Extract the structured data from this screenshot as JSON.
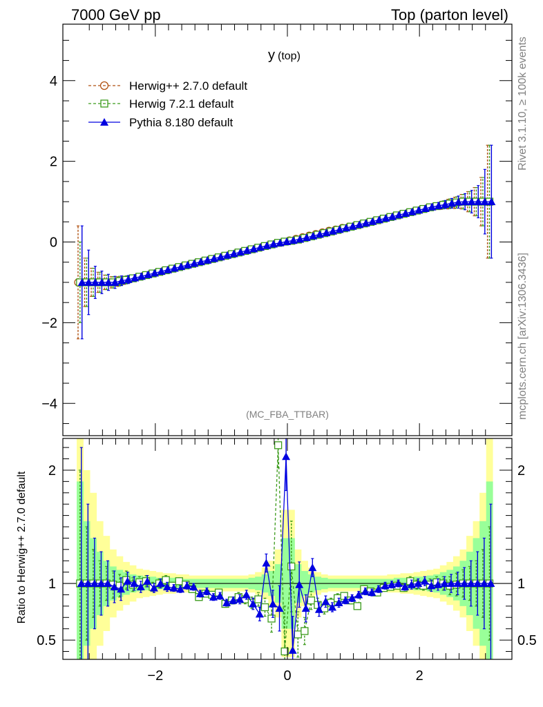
{
  "header": {
    "left": "7000 GeV pp",
    "right": "Top (parton level)"
  },
  "side_labels": {
    "rivet": "Rivet 3.1.10, ≥ 100k events",
    "site": "mcplots.cern.ch [arXiv:1306.3436]"
  },
  "analysis_tag": "(MC_FBA_TTBAR)",
  "colors": {
    "herwigpp": "#b05010",
    "herwig7": "#3a9a1a",
    "pythia": "#0000e0",
    "band_yellow": "#ffff99",
    "band_green": "#99ff99"
  },
  "chart_data": [
    {
      "type": "line",
      "title": "y (top)",
      "title_main": "y",
      "title_sub": "(top)",
      "xlabel": "",
      "ylabel": "",
      "xlim": [
        -3.4,
        3.4
      ],
      "ylim": [
        -4.8,
        5.4
      ],
      "yticks": [
        -4,
        -2,
        0,
        2,
        4
      ],
      "ytick_labels": [
        "−4",
        "−2",
        "0",
        "2",
        "4"
      ],
      "legend_position": "top-left",
      "legend": [
        "Herwig++ 2.7.0 default",
        "Herwig 7.2.1 default",
        "Pythia 8.180 default"
      ],
      "x": [
        -3.14,
        -3.04,
        -2.94,
        -2.84,
        -2.74,
        -2.64,
        -2.54,
        -2.44,
        -2.34,
        -2.24,
        -2.14,
        -2.04,
        -1.94,
        -1.84,
        -1.74,
        -1.64,
        -1.54,
        -1.44,
        -1.34,
        -1.24,
        -1.14,
        -1.04,
        -0.94,
        -0.84,
        -0.74,
        -0.64,
        -0.54,
        -0.44,
        -0.34,
        -0.24,
        -0.14,
        -0.04,
        0.06,
        0.16,
        0.26,
        0.36,
        0.46,
        0.56,
        0.66,
        0.76,
        0.86,
        0.96,
        1.06,
        1.16,
        1.26,
        1.36,
        1.46,
        1.56,
        1.66,
        1.76,
        1.86,
        1.96,
        2.06,
        2.16,
        2.26,
        2.36,
        2.46,
        2.56,
        2.66,
        2.76,
        2.86,
        2.96,
        3.06
      ],
      "series": [
        {
          "name": "Herwig++ 2.7.0 default",
          "marker": "circle",
          "style": "dashed",
          "values": [
            -1.0,
            -1.0,
            -1.0,
            -1.0,
            -1.0,
            -1.0,
            -0.98,
            -0.95,
            -0.91,
            -0.87,
            -0.83,
            -0.79,
            -0.75,
            -0.71,
            -0.67,
            -0.63,
            -0.59,
            -0.55,
            -0.51,
            -0.47,
            -0.43,
            -0.39,
            -0.35,
            -0.31,
            -0.27,
            -0.23,
            -0.19,
            -0.15,
            -0.11,
            -0.07,
            -0.03,
            0.0,
            0.04,
            0.08,
            0.12,
            0.16,
            0.2,
            0.24,
            0.28,
            0.31,
            0.35,
            0.38,
            0.41,
            0.45,
            0.49,
            0.53,
            0.57,
            0.61,
            0.65,
            0.69,
            0.73,
            0.77,
            0.81,
            0.85,
            0.88,
            0.91,
            0.94,
            0.97,
            1.0,
            1.0,
            1.0,
            1.0,
            1.0
          ],
          "errors": [
            1.4,
            0.6,
            0.35,
            0.25,
            0.18,
            0.14,
            0.12,
            0.1,
            0.08,
            0.07,
            0.06,
            0.05,
            0.05,
            0.04,
            0.04,
            0.04,
            0.03,
            0.03,
            0.03,
            0.03,
            0.03,
            0.03,
            0.03,
            0.03,
            0.03,
            0.03,
            0.03,
            0.03,
            0.03,
            0.03,
            0.03,
            0.03,
            0.03,
            0.03,
            0.03,
            0.03,
            0.03,
            0.03,
            0.03,
            0.03,
            0.03,
            0.03,
            0.03,
            0.03,
            0.03,
            0.03,
            0.03,
            0.04,
            0.04,
            0.04,
            0.05,
            0.05,
            0.06,
            0.07,
            0.08,
            0.1,
            0.12,
            0.14,
            0.18,
            0.25,
            0.35,
            0.6,
            1.4
          ]
        },
        {
          "name": "Herwig 7.2.1 default",
          "marker": "square",
          "style": "dashed",
          "values": [
            -1.0,
            -1.0,
            -1.0,
            -1.0,
            -1.0,
            -1.0,
            -0.97,
            -0.94,
            -0.9,
            -0.86,
            -0.82,
            -0.78,
            -0.74,
            -0.7,
            -0.66,
            -0.62,
            -0.58,
            -0.54,
            -0.5,
            -0.46,
            -0.42,
            -0.38,
            -0.34,
            -0.3,
            -0.26,
            -0.22,
            -0.18,
            -0.14,
            -0.1,
            -0.06,
            -0.02,
            0.01,
            0.03,
            0.06,
            0.1,
            0.14,
            0.18,
            0.22,
            0.26,
            0.3,
            0.34,
            0.38,
            0.42,
            0.46,
            0.5,
            0.54,
            0.58,
            0.62,
            0.66,
            0.7,
            0.74,
            0.78,
            0.82,
            0.86,
            0.89,
            0.92,
            0.95,
            0.98,
            1.0,
            1.0,
            1.0,
            1.0,
            1.0
          ],
          "errors": [
            1.0,
            0.6,
            0.35,
            0.25,
            0.18,
            0.14,
            0.12,
            0.1,
            0.08,
            0.07,
            0.06,
            0.05,
            0.05,
            0.04,
            0.04,
            0.04,
            0.03,
            0.03,
            0.03,
            0.03,
            0.03,
            0.03,
            0.03,
            0.03,
            0.03,
            0.03,
            0.03,
            0.03,
            0.03,
            0.03,
            0.03,
            0.03,
            0.03,
            0.03,
            0.03,
            0.03,
            0.03,
            0.03,
            0.03,
            0.03,
            0.03,
            0.03,
            0.03,
            0.03,
            0.03,
            0.03,
            0.03,
            0.04,
            0.04,
            0.04,
            0.05,
            0.05,
            0.06,
            0.07,
            0.08,
            0.1,
            0.12,
            0.14,
            0.18,
            0.25,
            0.35,
            0.6,
            1.4
          ]
        },
        {
          "name": "Pythia 8.180 default",
          "marker": "triangle",
          "style": "solid",
          "values": [
            -1.0,
            -1.0,
            -1.0,
            -1.0,
            -1.0,
            -1.0,
            -0.96,
            -0.93,
            -0.89,
            -0.85,
            -0.81,
            -0.77,
            -0.73,
            -0.69,
            -0.65,
            -0.61,
            -0.57,
            -0.53,
            -0.49,
            -0.45,
            -0.41,
            -0.37,
            -0.33,
            -0.29,
            -0.25,
            -0.21,
            -0.17,
            -0.13,
            -0.09,
            -0.05,
            -0.02,
            0.01,
            0.04,
            0.07,
            0.11,
            0.15,
            0.19,
            0.23,
            0.27,
            0.31,
            0.35,
            0.39,
            0.43,
            0.47,
            0.51,
            0.55,
            0.59,
            0.63,
            0.67,
            0.71,
            0.75,
            0.79,
            0.83,
            0.87,
            0.9,
            0.93,
            0.96,
            0.99,
            1.0,
            1.0,
            1.0,
            1.0,
            1.0
          ],
          "errors": [
            1.4,
            0.8,
            0.4,
            0.28,
            0.2,
            0.15,
            0.12,
            0.1,
            0.08,
            0.07,
            0.06,
            0.05,
            0.05,
            0.04,
            0.04,
            0.04,
            0.03,
            0.03,
            0.03,
            0.03,
            0.03,
            0.03,
            0.03,
            0.03,
            0.03,
            0.03,
            0.03,
            0.03,
            0.03,
            0.03,
            0.03,
            0.03,
            0.03,
            0.03,
            0.03,
            0.03,
            0.03,
            0.03,
            0.03,
            0.03,
            0.03,
            0.03,
            0.03,
            0.03,
            0.03,
            0.03,
            0.03,
            0.04,
            0.04,
            0.04,
            0.05,
            0.05,
            0.06,
            0.07,
            0.08,
            0.1,
            0.12,
            0.15,
            0.2,
            0.28,
            0.4,
            0.8,
            1.4
          ]
        }
      ]
    },
    {
      "type": "line",
      "title": "Ratio to Herwig++ 2.7.0 default",
      "ylabel": "Ratio to Herwig++ 2.7.0 default",
      "xlabel": "",
      "xlim": [
        -3.4,
        3.4
      ],
      "ylim": [
        0.33,
        2.28
      ],
      "yticks": [
        0.5,
        1,
        2
      ],
      "ytick_labels": [
        "0.5",
        "1",
        "2"
      ],
      "xticks": [
        -2,
        0,
        2
      ],
      "xtick_labels": [
        "−2",
        "0",
        "2"
      ],
      "x": [
        -3.14,
        -3.04,
        -2.94,
        -2.84,
        -2.74,
        -2.64,
        -2.54,
        -2.44,
        -2.34,
        -2.24,
        -2.14,
        -2.04,
        -1.94,
        -1.84,
        -1.74,
        -1.64,
        -1.54,
        -1.44,
        -1.34,
        -1.24,
        -1.14,
        -1.04,
        -0.94,
        -0.84,
        -0.74,
        -0.64,
        -0.54,
        -0.44,
        -0.34,
        -0.24,
        -0.14,
        -0.04,
        0.06,
        0.16,
        0.26,
        0.36,
        0.46,
        0.56,
        0.66,
        0.76,
        0.86,
        0.96,
        1.06,
        1.16,
        1.26,
        1.36,
        1.46,
        1.56,
        1.66,
        1.76,
        1.86,
        1.96,
        2.06,
        2.16,
        2.26,
        2.36,
        2.46,
        2.56,
        2.66,
        2.76,
        2.86,
        2.96,
        3.06
      ],
      "band": {
        "yellow_halfwidth": [
          1.4,
          1.0,
          0.8,
          0.55,
          0.42,
          0.3,
          0.24,
          0.19,
          0.16,
          0.13,
          0.12,
          0.11,
          0.1,
          0.09,
          0.09,
          0.08,
          0.08,
          0.07,
          0.07,
          0.07,
          0.07,
          0.07,
          0.07,
          0.07,
          0.07,
          0.07,
          0.08,
          0.1,
          0.14,
          0.2,
          0.3,
          0.65,
          0.65,
          0.3,
          0.2,
          0.14,
          0.1,
          0.08,
          0.07,
          0.07,
          0.07,
          0.07,
          0.07,
          0.07,
          0.07,
          0.07,
          0.07,
          0.08,
          0.08,
          0.09,
          0.09,
          0.1,
          0.11,
          0.12,
          0.13,
          0.16,
          0.19,
          0.24,
          0.3,
          0.42,
          0.55,
          0.8,
          1.4
        ],
        "green_halfwidth": [
          0.9,
          0.55,
          0.4,
          0.28,
          0.2,
          0.15,
          0.12,
          0.1,
          0.08,
          0.07,
          0.06,
          0.06,
          0.05,
          0.05,
          0.05,
          0.04,
          0.04,
          0.04,
          0.04,
          0.04,
          0.04,
          0.04,
          0.04,
          0.04,
          0.04,
          0.04,
          0.05,
          0.06,
          0.08,
          0.11,
          0.17,
          0.4,
          0.4,
          0.17,
          0.11,
          0.08,
          0.06,
          0.05,
          0.04,
          0.04,
          0.04,
          0.04,
          0.04,
          0.04,
          0.04,
          0.04,
          0.04,
          0.04,
          0.05,
          0.05,
          0.05,
          0.06,
          0.06,
          0.07,
          0.08,
          0.1,
          0.12,
          0.15,
          0.2,
          0.28,
          0.4,
          0.55,
          0.9
        ]
      },
      "series": [
        {
          "name": "Herwig 7.2.1 default",
          "marker": "square",
          "style": "dashed",
          "values": [
            1.0,
            1.0,
            1.0,
            1.0,
            1.0,
            0.99,
            0.98,
            1.03,
            0.99,
            1.01,
            1.02,
            0.97,
            1.0,
            1.03,
            0.98,
            1.02,
            0.99,
            0.95,
            0.88,
            0.91,
            0.9,
            0.92,
            0.82,
            0.85,
            0.88,
            0.86,
            0.83,
            0.86,
            0.79,
            0.69,
            2.22,
            0.4,
            1.15,
            0.55,
            0.58,
            0.85,
            0.81,
            0.78,
            0.83,
            0.87,
            0.89,
            0.85,
            0.8,
            0.95,
            0.93,
            0.92,
            0.96,
            0.97,
            0.98,
            0.96,
            1.02,
            0.99,
            0.98,
            0.99,
            1.01,
            1.0,
            0.98,
            0.99,
            1.0,
            1.0,
            1.0,
            1.0,
            1.0
          ],
          "errors": [
            1.0,
            0.5,
            0.3,
            0.2,
            0.15,
            0.12,
            0.1,
            0.08,
            0.06,
            0.05,
            0.05,
            0.04,
            0.04,
            0.04,
            0.03,
            0.03,
            0.03,
            0.03,
            0.03,
            0.03,
            0.03,
            0.03,
            0.03,
            0.03,
            0.04,
            0.04,
            0.05,
            0.06,
            0.08,
            0.12,
            0.2,
            0.4,
            0.4,
            0.2,
            0.12,
            0.08,
            0.06,
            0.05,
            0.04,
            0.04,
            0.03,
            0.03,
            0.03,
            0.03,
            0.03,
            0.03,
            0.03,
            0.03,
            0.03,
            0.03,
            0.04,
            0.04,
            0.04,
            0.05,
            0.05,
            0.06,
            0.08,
            0.1,
            0.12,
            0.15,
            0.2,
            0.3,
            0.5
          ]
        },
        {
          "name": "Pythia 8.180 default",
          "marker": "triangle",
          "style": "solid",
          "values": [
            1.0,
            1.0,
            1.0,
            1.0,
            1.0,
            0.97,
            0.95,
            1.02,
            1.0,
            0.97,
            1.02,
            0.96,
            1.0,
            0.97,
            0.96,
            0.95,
            0.98,
            0.97,
            0.91,
            0.93,
            0.88,
            0.89,
            0.83,
            0.85,
            0.86,
            0.9,
            0.82,
            0.73,
            1.18,
            0.82,
            0.78,
            2.12,
            0.41,
            0.99,
            0.78,
            1.14,
            0.77,
            0.84,
            0.79,
            0.83,
            0.85,
            0.87,
            0.9,
            0.93,
            0.92,
            0.95,
            0.98,
            0.99,
            1.0,
            0.97,
            0.99,
            1.0,
            1.02,
            0.98,
            0.99,
            1.0,
            1.0,
            1.0,
            1.0,
            1.0,
            1.0,
            1.0,
            1.0
          ],
          "errors": [
            1.2,
            0.7,
            0.4,
            0.28,
            0.2,
            0.14,
            0.1,
            0.08,
            0.06,
            0.05,
            0.05,
            0.04,
            0.04,
            0.04,
            0.03,
            0.03,
            0.03,
            0.03,
            0.03,
            0.03,
            0.03,
            0.03,
            0.03,
            0.03,
            0.04,
            0.04,
            0.05,
            0.06,
            0.08,
            0.12,
            0.2,
            0.3,
            0.3,
            0.2,
            0.12,
            0.08,
            0.06,
            0.05,
            0.04,
            0.04,
            0.03,
            0.03,
            0.03,
            0.03,
            0.03,
            0.03,
            0.03,
            0.03,
            0.03,
            0.03,
            0.04,
            0.04,
            0.04,
            0.05,
            0.05,
            0.06,
            0.08,
            0.1,
            0.14,
            0.2,
            0.28,
            0.4,
            0.7
          ]
        }
      ]
    }
  ]
}
